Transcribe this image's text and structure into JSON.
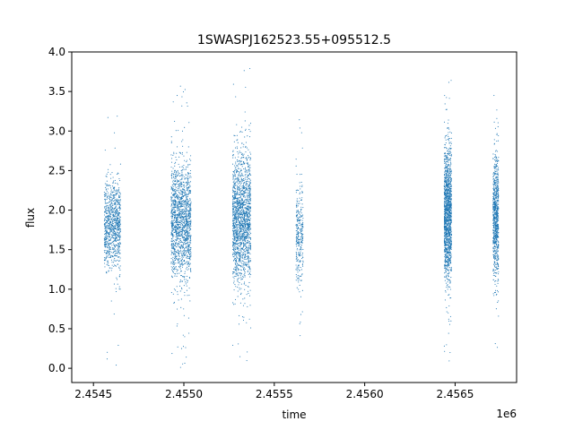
{
  "chart_data": {
    "type": "scatter",
    "title": "1SWASPJ162523.55+095512.5",
    "xlabel": "time",
    "ylabel": "flux",
    "x_offset_label": "1e6",
    "xlim": [
      2.45438,
      2.45684
    ],
    "ylim": [
      -0.18,
      4.0
    ],
    "xticks": [
      2.4545,
      2.455,
      2.4555,
      2.456,
      2.4565
    ],
    "xtick_labels": [
      "2.4545",
      "2.4550",
      "2.4555",
      "2.4560",
      "2.4565"
    ],
    "yticks": [
      0.0,
      0.5,
      1.0,
      1.5,
      2.0,
      2.5,
      3.0,
      3.5,
      4.0
    ],
    "ytick_labels": [
      "0.0",
      "0.5",
      "1.0",
      "1.5",
      "2.0",
      "2.5",
      "3.0",
      "3.5",
      "4.0"
    ],
    "grid": false,
    "marker_color": "#1f77b4",
    "series": [
      {
        "clusters": [
          {
            "x_start": 2.45456,
            "x_end": 2.45465,
            "center": 1.8,
            "spread": 0.28,
            "y_min": 0.0,
            "y_max": 3.27,
            "count": 900
          },
          {
            "x_start": 2.45493,
            "x_end": 2.45504,
            "center": 1.85,
            "spread": 0.35,
            "y_min": 0.0,
            "y_max": 3.68,
            "count": 1500
          },
          {
            "x_start": 2.45527,
            "x_end": 2.45537,
            "center": 1.9,
            "spread": 0.4,
            "y_min": 0.03,
            "y_max": 3.8,
            "count": 1700
          },
          {
            "x_start": 2.45562,
            "x_end": 2.45566,
            "center": 1.7,
            "spread": 0.3,
            "y_min": 0.37,
            "y_max": 3.23,
            "count": 300
          },
          {
            "x_start": 2.45644,
            "x_end": 2.45648,
            "center": 1.95,
            "spread": 0.4,
            "y_min": 0.03,
            "y_max": 3.65,
            "count": 1400
          },
          {
            "x_start": 2.45671,
            "x_end": 2.45674,
            "center": 1.9,
            "spread": 0.38,
            "y_min": 0.2,
            "y_max": 3.8,
            "count": 800
          }
        ]
      }
    ]
  }
}
